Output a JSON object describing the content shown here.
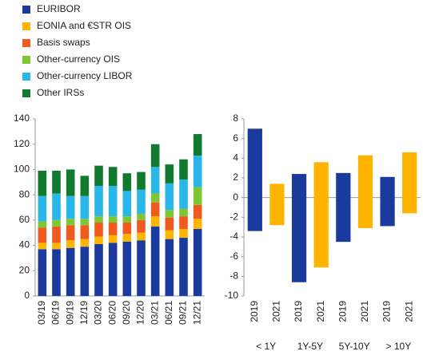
{
  "chart_data": [
    {
      "type": "stacked_bar",
      "categories": [
        "03/19",
        "06/19",
        "09/19",
        "12/19",
        "03/20",
        "06/20",
        "09/20",
        "12/20",
        "03/21",
        "06/21",
        "09/21",
        "12/21"
      ],
      "series": [
        {
          "name": "EURIBOR",
          "color": "#1a3a9e",
          "values": [
            37,
            37,
            38,
            39,
            41,
            42,
            43,
            44,
            55,
            45,
            46,
            53
          ]
        },
        {
          "name": "EONIA and €STR OIS",
          "color": "#ffb400",
          "values": [
            5,
            5,
            6,
            6,
            6,
            6,
            6,
            6,
            8,
            7,
            7,
            8
          ]
        },
        {
          "name": "Basis swaps",
          "color": "#f05a1e",
          "values": [
            12,
            13,
            12,
            11,
            11,
            10,
            9,
            10,
            11,
            10,
            10,
            11
          ]
        },
        {
          "name": "Other-currency OIS",
          "color": "#7dc832",
          "values": [
            5,
            5,
            5,
            5,
            5,
            5,
            5,
            5,
            7,
            6,
            6,
            14
          ]
        },
        {
          "name": "Other-currency LIBOR",
          "color": "#29b6e8",
          "values": [
            20,
            21,
            18,
            18,
            24,
            24,
            20,
            19,
            21,
            21,
            23,
            25
          ]
        },
        {
          "name": "Other IRSs",
          "color": "#127a2e",
          "values": [
            20,
            18,
            21,
            16,
            16,
            15,
            14,
            14,
            18,
            15,
            16,
            17
          ]
        }
      ],
      "ylim": [
        0,
        140
      ],
      "yticks": [
        0,
        20,
        40,
        60,
        80,
        100,
        120,
        140
      ]
    },
    {
      "type": "floating_bar",
      "categories": [
        "2019",
        "2021",
        "2019",
        "2021",
        "2019",
        "2021",
        "2019",
        "2021"
      ],
      "groups": [
        "< 1Y",
        "1Y-5Y",
        "5Y-10Y",
        "> 10Y"
      ],
      "colors": [
        "#1a3a9e",
        "#ffb400",
        "#1a3a9e",
        "#ffb400",
        "#1a3a9e",
        "#ffb400",
        "#1a3a9e",
        "#ffb400"
      ],
      "low": [
        -3.4,
        -2.8,
        -8.6,
        -7.1,
        -4.5,
        -3.1,
        -2.9,
        -1.6
      ],
      "high": [
        7,
        1.4,
        2.4,
        3.6,
        2.5,
        4.3,
        2.1,
        4.6
      ],
      "ylim": [
        -10,
        8
      ],
      "yticks": [
        -10,
        -8,
        -6,
        -4,
        -2,
        0,
        2,
        4,
        6,
        8
      ]
    }
  ]
}
